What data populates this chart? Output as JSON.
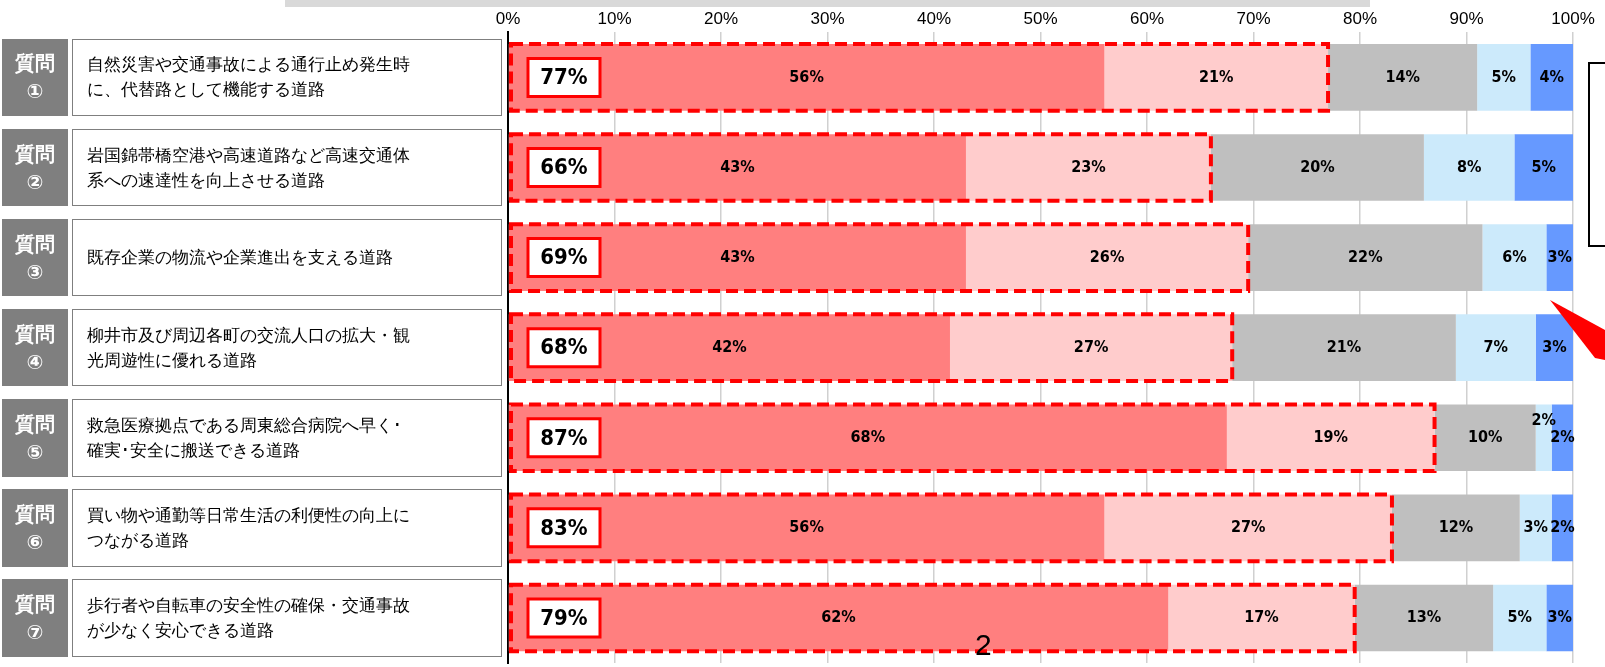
{
  "chart_data": {
    "type": "bar",
    "orientation": "horizontal",
    "stacked": true,
    "categories": [
      "質問①\n自然災害や交通事故による通行止め発生時に、代替路として機能する道路",
      "質問②\n岩国錦帯橋空港や高速道路など高速交通体系への速達性を向上させる道路",
      "質問③\n既存企業の物流や企業進出を支える道路",
      "質問④\n柳井市及び周辺各町の交流人口の拡大・観光周遊性に優れる道路",
      "質問⑤\n救急医療拠点である周東総合病院へ早く･確実･安全に搬送できる道路",
      "質問⑥\n買い物や通勤等日常生活の利便性の向上につながる道路",
      "質問⑦\n歩行者や自転車の安全性の確保・交通事故が少なく安心できる道路"
    ],
    "series": [
      {
        "color": "#ff7f7f",
        "values": [
          56,
          43,
          43,
          41.5,
          67.5,
          56,
          62
        ],
        "value_labels": [
          "56%",
          "43%",
          "43%",
          "42%",
          "68%",
          "56%",
          "62%"
        ]
      },
      {
        "color": "#ffcccc",
        "values": [
          21,
          23,
          26.5,
          26.5,
          19.5,
          27,
          17.5
        ],
        "value_labels": [
          "21%",
          "23%",
          "26%",
          "27%",
          "19%",
          "27%",
          "17%"
        ]
      },
      {
        "color": "#bfbfbf",
        "values": [
          14,
          20,
          22,
          21,
          9.5,
          12,
          13
        ],
        "value_labels": [
          "14%",
          "20%",
          "22%",
          "21%",
          "10%",
          "12%",
          "13%"
        ]
      },
      {
        "color": "#cceafb",
        "values": [
          5,
          8.5,
          6,
          7.5,
          1.5,
          3,
          5
        ],
        "value_labels": [
          "5%",
          "8%",
          "6%",
          "7%",
          "2%",
          "3%",
          "5%"
        ]
      },
      {
        "color": "#6699ff",
        "values": [
          4,
          5.5,
          2.5,
          3.5,
          2,
          2,
          2.5
        ],
        "value_labels": [
          "4%",
          "5%",
          "3%",
          "3%",
          "2%",
          "2%",
          "3%"
        ]
      }
    ],
    "xlim": [
      0,
      100
    ],
    "xticks": [
      {
        "value": 0,
        "label": "0%"
      },
      {
        "value": 10,
        "label": "10%"
      },
      {
        "value": 20,
        "label": "20%"
      },
      {
        "value": 30,
        "label": "30%"
      },
      {
        "value": 40,
        "label": "40%"
      },
      {
        "value": 50,
        "label": "50%"
      },
      {
        "value": 60,
        "label": "60%"
      },
      {
        "value": 70,
        "label": "70%"
      },
      {
        "value": 80,
        "label": "80%"
      },
      {
        "value": 90,
        "label": "90%"
      },
      {
        "value": 100,
        "label": "100%"
      }
    ],
    "grid": "x",
    "legend": false,
    "annotations": [
      "77%",
      "66%",
      "69%",
      "68%",
      "87%",
      "83%",
      "79%",
      "2"
    ]
  }
}
